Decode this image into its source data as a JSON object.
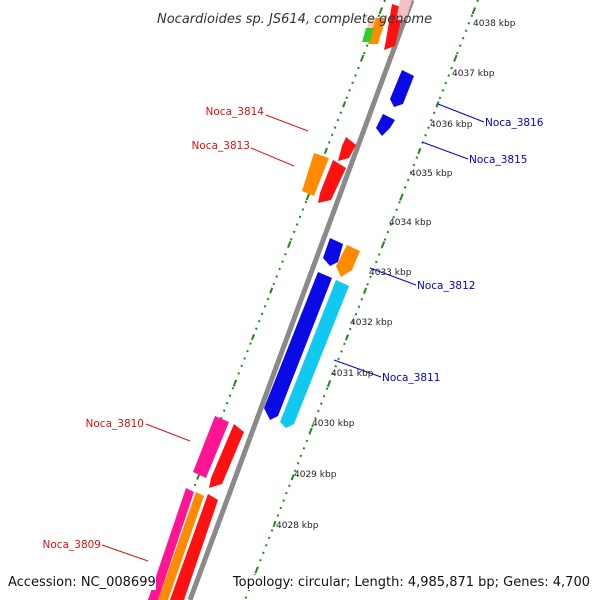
{
  "title": "Nocardioides sp. JS614, complete genome",
  "footer": {
    "accession": "Accession: NC_008699",
    "topology": "Topology: circular; Length: 4,985,871 bp; Genes: 4,700"
  },
  "axis": {
    "ticks": [
      {
        "label": "4028 kbp",
        "kbp": 4028
      },
      {
        "label": "4029 kbp",
        "kbp": 4029
      },
      {
        "label": "4030 kbp",
        "kbp": 4030
      },
      {
        "label": "4031 kbp",
        "kbp": 4031
      },
      {
        "label": "4032 kbp",
        "kbp": 4032
      },
      {
        "label": "4033 kbp",
        "kbp": 4033
      },
      {
        "label": "4034 kbp",
        "kbp": 4034
      },
      {
        "label": "4035 kbp",
        "kbp": 4035
      },
      {
        "label": "4036 kbp",
        "kbp": 4036
      },
      {
        "label": "4037 kbp",
        "kbp": 4037
      },
      {
        "label": "4038 kbp",
        "kbp": 4038
      }
    ]
  },
  "strands": {
    "forward_color": "#dd1111",
    "reverse_color": "#1111bb"
  },
  "genes": [
    {
      "name": "Noca_3816",
      "strand": "reverse",
      "color": "#0000dd"
    },
    {
      "name": "Noca_3815",
      "strand": "reverse",
      "color": "#0000dd"
    },
    {
      "name": "Noca_3814",
      "strand": "forward",
      "color": "#dd1111"
    },
    {
      "name": "Noca_3813",
      "strand": "forward",
      "color": "#dd1111"
    },
    {
      "name": "Noca_3812",
      "strand": "reverse",
      "color": "#0000dd"
    },
    {
      "name": "Noca_3811",
      "strand": "reverse",
      "color": "#0000dd"
    },
    {
      "name": "Noca_3810",
      "strand": "forward",
      "color": "#dd1111"
    },
    {
      "name": "Noca_3809",
      "strand": "forward",
      "color": "#dd1111"
    }
  ],
  "colors": {
    "red": "#ff1111",
    "blue": "#0a0ae6",
    "orange": "#ff8c00",
    "cyan": "#10c8f0",
    "magenta": "#ff1493",
    "green": "#33cc33",
    "backbone": "#888888",
    "dots": "#228b22"
  }
}
